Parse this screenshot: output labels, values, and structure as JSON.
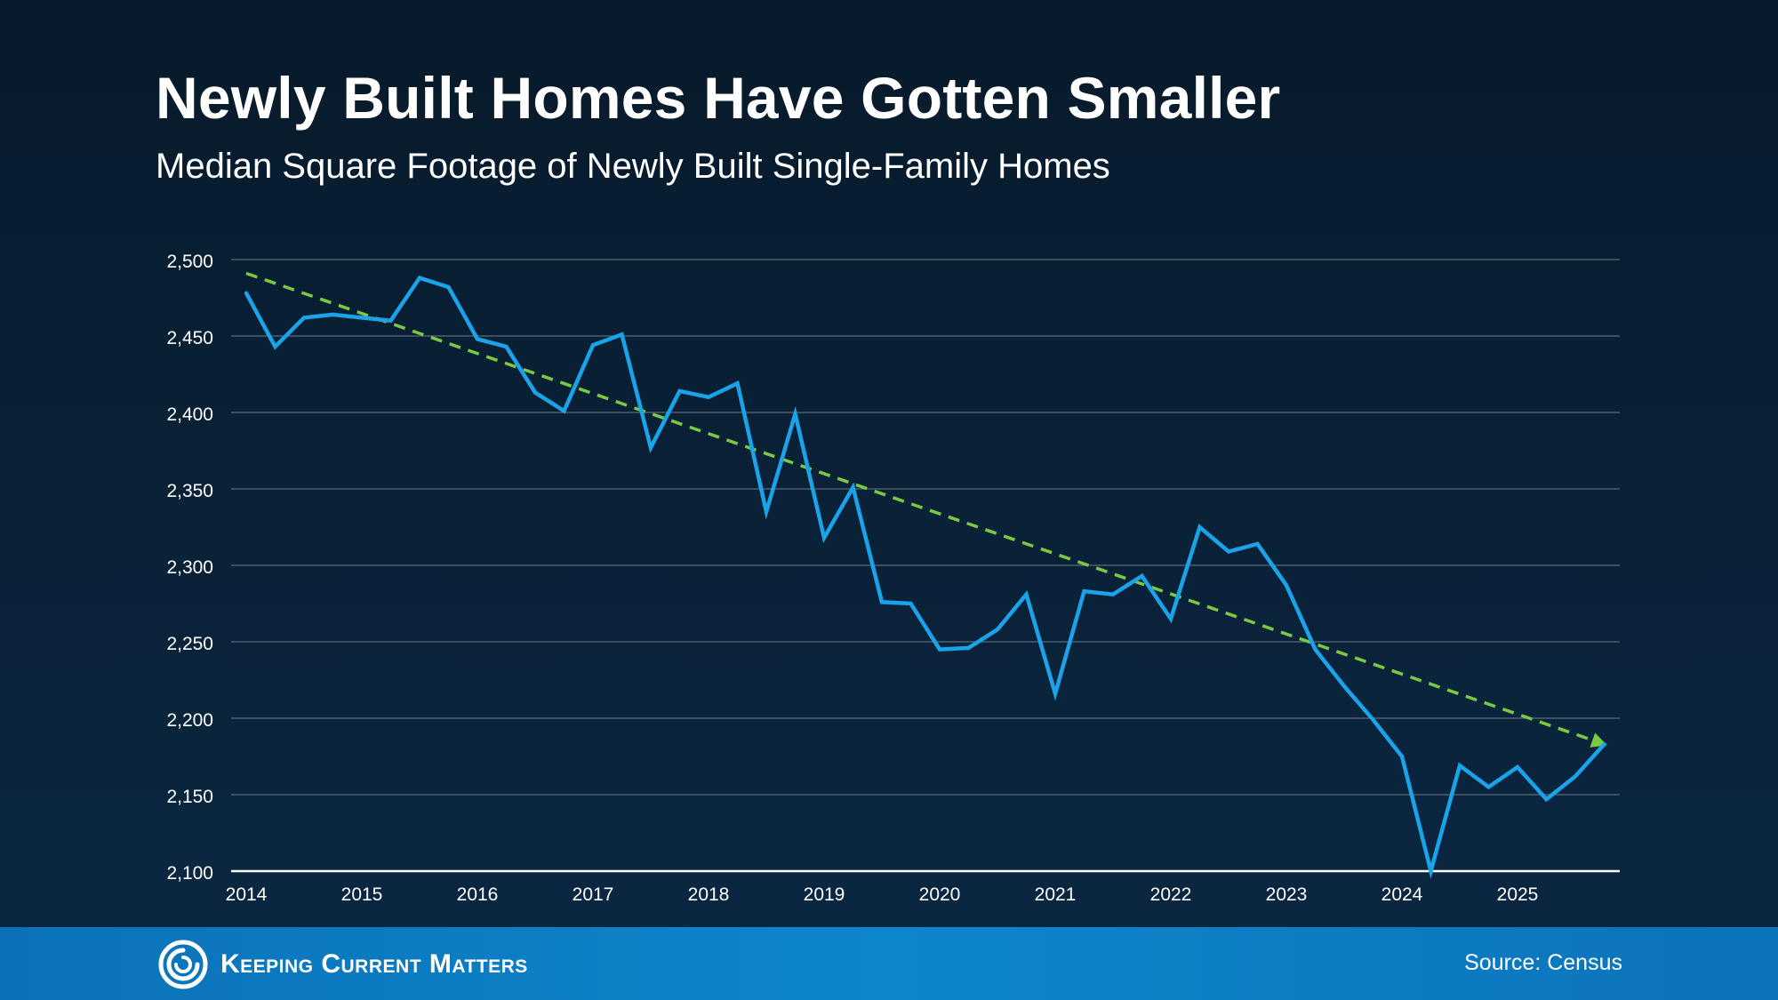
{
  "header": {
    "title": "Newly Built Homes Have Gotten Smaller",
    "subtitle": "Median Square Footage of Newly Built Single-Family Homes"
  },
  "footer": {
    "brand": "Keeping Current Matters",
    "source": "Source: Census"
  },
  "colors": {
    "series": "#1aa3e8",
    "trend": "#7ac943",
    "grid": "#5b6b7c",
    "text": "#ffffff"
  },
  "chart_data": {
    "type": "line",
    "title": "Newly Built Homes Have Gotten Smaller",
    "subtitle": "Median Square Footage of Newly Built Single-Family Homes",
    "xlabel": "",
    "ylabel": "",
    "x_ticks": [
      "2014",
      "2015",
      "2016",
      "2017",
      "2018",
      "2019",
      "2020",
      "2021",
      "2022",
      "2023",
      "2024",
      "2025"
    ],
    "y_ticks": [
      "2,100",
      "2,150",
      "2,200",
      "2,250",
      "2,300",
      "2,350",
      "2,400",
      "2,450",
      "2,500"
    ],
    "ylim": [
      2100,
      2500
    ],
    "xlim": [
      2014,
      2025.75
    ],
    "grid": true,
    "legend": "none",
    "series": [
      {
        "x": [
          2014.0,
          2014.25,
          2014.5,
          2014.75,
          2015.0,
          2015.25,
          2015.5,
          2015.75,
          2016.0,
          2016.25,
          2016.5,
          2016.75,
          2017.0,
          2017.25,
          2017.5,
          2017.75,
          2018.0,
          2018.25,
          2018.5,
          2018.75,
          2019.0,
          2019.25,
          2019.5,
          2019.75,
          2020.0,
          2020.25,
          2020.5,
          2020.75,
          2021.0,
          2021.25,
          2021.5,
          2021.75,
          2022.0,
          2022.25,
          2022.5,
          2022.75,
          2023.0,
          2023.25,
          2023.5,
          2023.75,
          2024.0,
          2024.25,
          2024.5,
          2024.75,
          2025.0,
          2025.25,
          2025.5,
          2025.75
        ],
        "values": [
          2478,
          2443,
          2462,
          2464,
          2462,
          2460,
          2488,
          2482,
          2448,
          2443,
          2413,
          2401,
          2444,
          2451,
          2377,
          2414,
          2410,
          2419,
          2335,
          2399,
          2318,
          2351,
          2276,
          2275,
          2245,
          2246,
          2258,
          2281,
          2216,
          2283,
          2281,
          2293,
          2265,
          2325,
          2309,
          2314,
          2287,
          2245,
          2221,
          2199,
          2175,
          2100,
          2169,
          2155,
          2168,
          2147,
          2162,
          2183
        ]
      },
      {
        "name": "trend",
        "style": "dashed-arrow",
        "x": [
          2014.0,
          2025.75
        ],
        "values": [
          2491,
          2183
        ]
      }
    ]
  }
}
